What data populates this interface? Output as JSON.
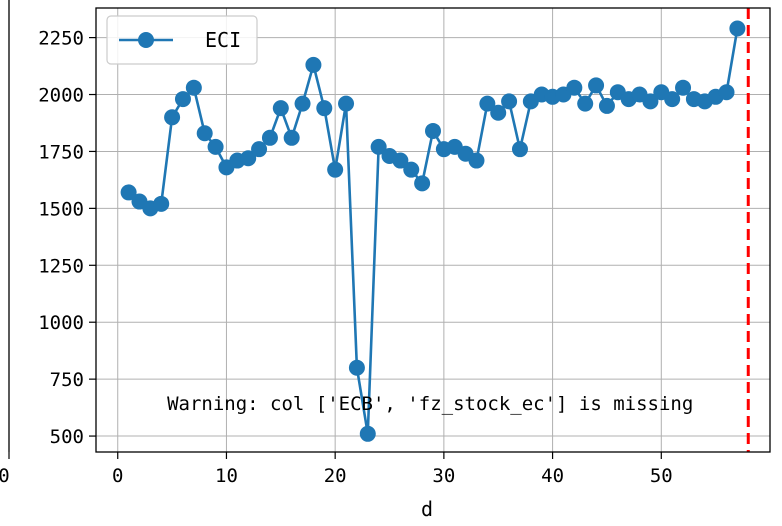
{
  "chart_data": {
    "type": "line",
    "title": "",
    "xlabel": "d",
    "ylabel": "",
    "xlim": [
      -2,
      60
    ],
    "ylim": [
      430,
      2380
    ],
    "xticks": [
      0,
      10,
      20,
      30,
      40,
      50
    ],
    "yticks": [
      500,
      750,
      1000,
      1250,
      1500,
      1750,
      2000,
      2250
    ],
    "grid": true,
    "legend_position": "upper left",
    "series": [
      {
        "name": "ECI",
        "color": "#1f77b4",
        "marker": "circle",
        "x": [
          1,
          2,
          3,
          4,
          5,
          6,
          7,
          8,
          9,
          10,
          11,
          12,
          13,
          14,
          15,
          16,
          17,
          18,
          19,
          20,
          21,
          22,
          23,
          24,
          25,
          26,
          27,
          28,
          29,
          30,
          31,
          32,
          33,
          34,
          35,
          36,
          37,
          38,
          39,
          40,
          41,
          42,
          43,
          44,
          45,
          46,
          47,
          48,
          49,
          50,
          51,
          52,
          53,
          54,
          55,
          56,
          57
        ],
        "values": [
          1570,
          1530,
          1500,
          1520,
          1900,
          1980,
          2030,
          1830,
          1770,
          1680,
          1710,
          1720,
          1760,
          1810,
          1940,
          1810,
          1960,
          2130,
          1940,
          1670,
          1960,
          800,
          510,
          1770,
          1730,
          1710,
          1670,
          1610,
          1840,
          1760,
          1770,
          1740,
          1710,
          1960,
          1920,
          1970,
          1760,
          1970,
          2000,
          1990,
          2000,
          2030,
          1960,
          2040,
          1950,
          2010,
          1980,
          2000,
          1970,
          2010,
          1980,
          2030,
          1980,
          1970,
          1990,
          2010,
          2290
        ]
      }
    ],
    "vline": {
      "x": 58,
      "color": "#ff0000",
      "style": "dashed"
    },
    "annotations": [
      {
        "text": "Warning: col ['ECB', 'fz_stock_ec'] is missing",
        "x": 5,
        "y": 650
      }
    ],
    "clipped_left_tick": "0"
  }
}
